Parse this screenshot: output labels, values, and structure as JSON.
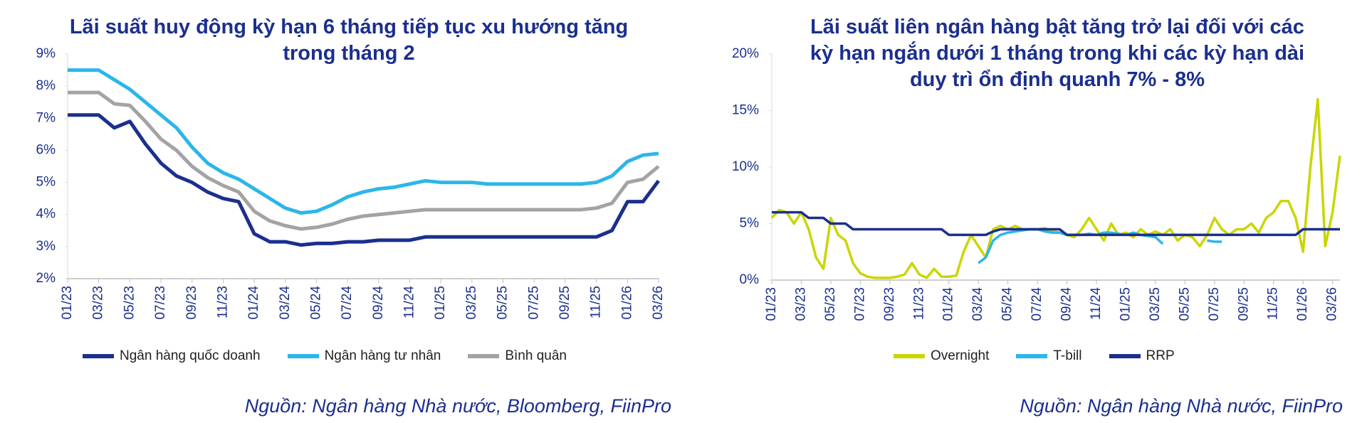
{
  "chart_data": [
    {
      "type": "line",
      "title": "Lãi suất huy động kỳ hạn 6 tháng tiếp tục xu hướng tăng trong tháng 2",
      "source": "Nguồn:  Ngân hàng Nhà nước, Bloomberg, FiinPro",
      "categories": [
        "01/23",
        null,
        "03/23",
        null,
        "05/23",
        null,
        "07/23",
        null,
        "09/23",
        null,
        "11/23",
        null,
        "01/24",
        null,
        "03/24",
        null,
        "05/24",
        null,
        "07/24",
        null,
        "09/24",
        null,
        "11/24",
        null,
        "01/25",
        null,
        "03/25",
        null,
        "05/25",
        null,
        "07/25",
        null,
        "09/25",
        null,
        "11/25",
        null,
        "01/26",
        null,
        "03/26"
      ],
      "series": [
        {
          "name": "Ngân hàng quốc doanh",
          "color": "#1b2f8e",
          "values": [
            7.1,
            7.1,
            7.1,
            6.7,
            6.9,
            6.2,
            5.6,
            5.2,
            5.0,
            4.7,
            4.5,
            4.4,
            3.4,
            3.15,
            3.15,
            3.05,
            3.1,
            3.1,
            3.15,
            3.15,
            3.2,
            3.2,
            3.2,
            3.3,
            3.3,
            3.3,
            3.3,
            3.3,
            3.3,
            3.3,
            3.3,
            3.3,
            3.3,
            3.3,
            3.3,
            3.5,
            4.4,
            4.4,
            5.05
          ]
        },
        {
          "name": "Ngân hàng tư nhân",
          "color": "#2bb6ea",
          "values": [
            8.5,
            8.5,
            8.5,
            8.2,
            7.9,
            7.5,
            7.1,
            6.7,
            6.1,
            5.6,
            5.3,
            5.1,
            4.8,
            4.5,
            4.2,
            4.05,
            4.1,
            4.3,
            4.55,
            4.7,
            4.8,
            4.85,
            4.95,
            5.05,
            5.0,
            5.0,
            5.0,
            4.95,
            4.95,
            4.95,
            4.95,
            4.95,
            4.95,
            4.95,
            5.0,
            5.2,
            5.65,
            5.85,
            5.9
          ]
        },
        {
          "name": "Bình quân",
          "color": "#a3a3a3",
          "values": [
            7.8,
            7.8,
            7.8,
            7.45,
            7.4,
            6.9,
            6.35,
            6.0,
            5.5,
            5.15,
            4.9,
            4.7,
            4.1,
            3.8,
            3.65,
            3.55,
            3.6,
            3.7,
            3.85,
            3.95,
            4.0,
            4.05,
            4.1,
            4.15,
            4.15,
            4.15,
            4.15,
            4.15,
            4.15,
            4.15,
            4.15,
            4.15,
            4.15,
            4.15,
            4.2,
            4.35,
            5.0,
            5.1,
            5.5
          ]
        }
      ],
      "ylim": [
        2,
        9
      ],
      "yticks": [
        {
          "value": 2,
          "label": "2%"
        },
        {
          "value": 3,
          "label": "3%"
        },
        {
          "value": 4,
          "label": "4%"
        },
        {
          "value": 5,
          "label": "5%"
        },
        {
          "value": 6,
          "label": "6%"
        },
        {
          "value": 7,
          "label": "7%"
        },
        {
          "value": 8,
          "label": "8%"
        },
        {
          "value": 9,
          "label": "9%"
        }
      ],
      "legend": "bottom",
      "grid": false
    },
    {
      "type": "line",
      "title": "Lãi suất liên ngân hàng bật tăng trở lại đối với các kỳ hạn ngắn dưới 1 tháng trong khi các kỳ hạn dài duy trì ổn định quanh 7% - 8%",
      "source": "Nguồn:  Ngân hàng Nhà nước, FiinPro",
      "categories": [
        "01/23",
        null,
        null,
        null,
        "03/23",
        null,
        null,
        null,
        "05/23",
        null,
        null,
        null,
        "07/23",
        null,
        null,
        null,
        "09/23",
        null,
        null,
        null,
        "11/23",
        null,
        null,
        null,
        "01/24",
        null,
        null,
        null,
        "03/24",
        null,
        null,
        null,
        "05/24",
        null,
        null,
        null,
        "07/24",
        null,
        null,
        null,
        "09/24",
        null,
        null,
        null,
        "11/24",
        null,
        null,
        null,
        "01/25",
        null,
        null,
        null,
        "03/25",
        null,
        null,
        null,
        "05/25",
        null,
        null,
        null,
        "07/25",
        null,
        null,
        null,
        "09/25",
        null,
        null,
        null,
        "11/25",
        null,
        null,
        null,
        "01/26",
        null,
        null,
        null,
        "03/26",
        null
      ],
      "series": [
        {
          "name": "Overnight",
          "color": "#c9d600",
          "values": [
            5.5,
            6.2,
            6.0,
            5.0,
            6.0,
            4.5,
            2.0,
            1.0,
            5.5,
            4.0,
            3.5,
            1.5,
            0.6,
            0.3,
            0.2,
            0.2,
            0.2,
            0.3,
            0.5,
            1.5,
            0.5,
            0.2,
            1.0,
            0.3,
            0.3,
            0.4,
            2.5,
            4.0,
            3.0,
            2.0,
            4.5,
            4.8,
            4.5,
            4.8,
            4.5,
            4.5,
            4.5,
            4.6,
            4.3,
            4.2,
            4.0,
            3.8,
            4.5,
            5.5,
            4.5,
            3.5,
            5.0,
            4.0,
            4.2,
            3.8,
            4.5,
            4.0,
            4.3,
            4.0,
            4.5,
            3.5,
            4.0,
            3.8,
            3.0,
            4.0,
            5.5,
            4.5,
            4.0,
            4.5,
            4.5,
            5.0,
            4.2,
            5.5,
            6.0,
            7.0,
            7.0,
            5.5,
            2.5,
            10.0,
            16.0,
            3.0,
            6.0,
            11.0
          ]
        },
        {
          "name": "T-bill",
          "color": "#2bb6ea",
          "values": [
            null,
            null,
            null,
            null,
            null,
            null,
            null,
            null,
            null,
            null,
            null,
            null,
            null,
            null,
            null,
            null,
            null,
            null,
            null,
            null,
            null,
            null,
            null,
            null,
            null,
            null,
            null,
            null,
            1.5,
            2.0,
            3.5,
            4.0,
            4.2,
            4.3,
            4.4,
            4.5,
            4.5,
            4.3,
            4.2,
            4.2,
            4.0,
            4.0,
            4.0,
            4.1,
            4.0,
            4.2,
            4.2,
            4.1,
            4.0,
            4.2,
            4.0,
            3.9,
            3.8,
            3.2,
            null,
            null,
            null,
            null,
            null,
            3.5,
            3.4,
            3.4,
            null,
            null,
            null,
            null,
            null,
            null,
            null,
            null,
            null,
            null,
            null,
            null,
            null,
            null,
            null,
            null
          ]
        },
        {
          "name": "RRP",
          "color": "#1b2f8e",
          "values": [
            6,
            6,
            6,
            6,
            6,
            5.5,
            5.5,
            5.5,
            5,
            5,
            5,
            4.5,
            4.5,
            4.5,
            4.5,
            4.5,
            4.5,
            4.5,
            4.5,
            4.5,
            4.5,
            4.5,
            4.5,
            4.5,
            4,
            4,
            4,
            4,
            4,
            4,
            4.3,
            4.5,
            4.5,
            4.5,
            4.5,
            4.5,
            4.5,
            4.5,
            4.5,
            4.5,
            4,
            4,
            4,
            4,
            4,
            4,
            4,
            4,
            4,
            4,
            4,
            4,
            4,
            4,
            4,
            4,
            4,
            4,
            4,
            4,
            4,
            4,
            4,
            4,
            4,
            4,
            4,
            4,
            4,
            4,
            4,
            4,
            4.5,
            4.5,
            4.5,
            4.5,
            4.5,
            4.5
          ]
        }
      ],
      "ylim": [
        0,
        20
      ],
      "yticks": [
        {
          "value": 0,
          "label": "0%"
        },
        {
          "value": 5,
          "label": "5%"
        },
        {
          "value": 10,
          "label": "10%"
        },
        {
          "value": 15,
          "label": "15%"
        },
        {
          "value": 20,
          "label": "20%"
        }
      ],
      "legend": "bottom",
      "grid": false
    }
  ]
}
